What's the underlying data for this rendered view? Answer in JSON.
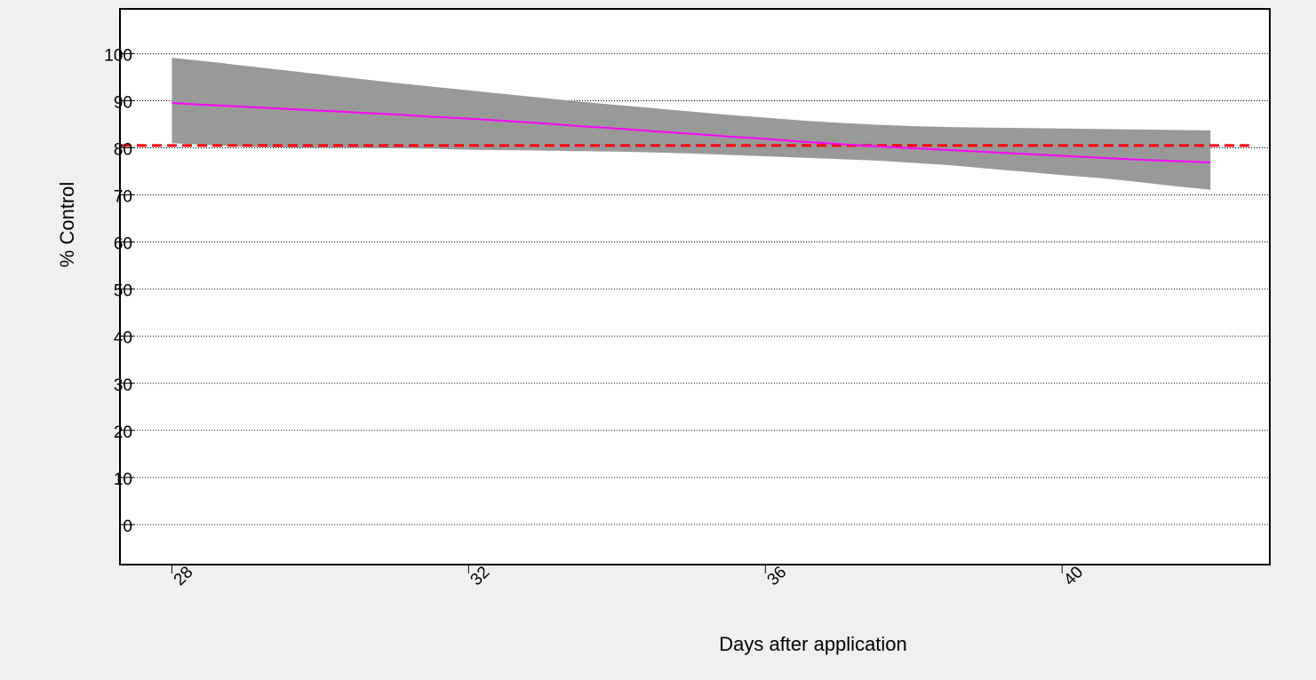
{
  "chart_data": {
    "type": "line",
    "title": "",
    "xlabel": "Days after application",
    "ylabel": "% Control",
    "xlim": [
      27.3,
      42.8
    ],
    "ylim": [
      -8.5,
      109.5
    ],
    "x_ticks": [
      28,
      32,
      36,
      40
    ],
    "y_ticks": [
      0,
      10,
      20,
      30,
      40,
      50,
      60,
      70,
      80,
      90,
      100
    ],
    "grid": {
      "y": true,
      "x": false,
      "style": "dotted"
    },
    "colors": {
      "page_background": "#f0f0f0",
      "plot_background": "#ffffff",
      "band": "#999999",
      "estimate_line": "#ff00ff",
      "reference_line": "#ff0000",
      "gridline": "#000000"
    },
    "series": [
      {
        "kind": "band",
        "x": [
          28,
          28.5,
          29,
          29.5,
          30,
          30.5,
          31,
          31.5,
          32,
          32.5,
          33,
          33.5,
          34,
          34.5,
          35,
          35.5,
          36,
          36.5,
          37,
          37.5,
          38,
          38.5,
          39,
          39.5,
          40,
          40.5,
          41,
          41.5,
          42
        ],
        "lower": [
          81,
          80.6,
          80.2,
          80.1,
          80,
          80,
          79.9,
          79.8,
          79.6,
          79.5,
          79.4,
          79.3,
          79.2,
          79,
          78.8,
          78.5,
          78.2,
          77.9,
          77.6,
          77.3,
          76.8,
          76.3,
          75.6,
          74.9,
          74.2,
          73.6,
          72.8,
          71.9,
          71.1
        ],
        "upper": [
          99.1,
          98.3,
          97.4,
          96.5,
          95.6,
          94.7,
          93.8,
          93,
          92.2,
          91.4,
          90.6,
          89.8,
          89.1,
          88.4,
          87.7,
          87,
          86.4,
          85.8,
          85.3,
          84.9,
          84.6,
          84.4,
          84.3,
          84.2,
          84.1,
          84,
          83.9,
          83.8,
          83.7
        ]
      },
      {
        "kind": "line",
        "x": [
          28,
          28.5,
          29,
          29.5,
          30,
          30.5,
          31,
          31.5,
          32,
          32.5,
          33,
          33.5,
          34,
          34.5,
          35,
          35.5,
          36,
          36.5,
          37,
          37.5,
          38,
          38.5,
          39,
          39.5,
          40,
          40.5,
          41,
          41.5,
          42
        ],
        "y": [
          89.5,
          89.1,
          88.7,
          88.3,
          87.9,
          87.5,
          87.1,
          86.6,
          86.2,
          85.7,
          85.2,
          84.6,
          84.1,
          83.5,
          83,
          82.4,
          81.9,
          81.3,
          80.8,
          80.3,
          79.9,
          79.5,
          79.1,
          78.7,
          78.3,
          77.9,
          77.5,
          77.2,
          76.9
        ]
      },
      {
        "kind": "hline",
        "y": 80.5,
        "style": "dashed"
      }
    ]
  }
}
